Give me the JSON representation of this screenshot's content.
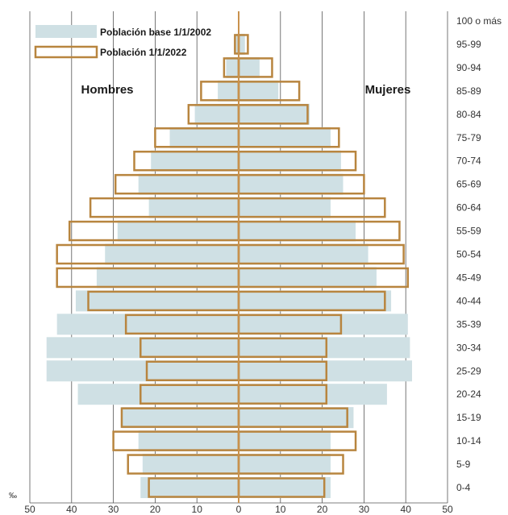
{
  "chart_data": {
    "type": "bar",
    "subtype": "population-pyramid",
    "unit_label": "‰",
    "male_label": "Hombres",
    "female_label": "Mujeres",
    "age_groups": [
      "0-4",
      "5-9",
      "10-14",
      "15-19",
      "20-24",
      "25-29",
      "30-34",
      "35-39",
      "40-44",
      "45-49",
      "50-54",
      "55-59",
      "60-64",
      "65-69",
      "70-74",
      "75-79",
      "80-84",
      "85-89",
      "90-94",
      "95-99",
      "100 o más"
    ],
    "x_ticks": [
      50,
      40,
      30,
      20,
      10,
      0,
      10,
      20,
      30,
      40,
      50
    ],
    "xlim": [
      -50,
      50
    ],
    "grid": true,
    "legend_position": "top-left",
    "series": [
      {
        "name": "Población base 1/1/2002",
        "style": "filled",
        "color": "#cfe0e4",
        "male": [
          23.5,
          23,
          24,
          28,
          38.5,
          46,
          46,
          43.5,
          39,
          34,
          32,
          29,
          21.5,
          24,
          21,
          16.5,
          10.5,
          5,
          3,
          0.8,
          0
        ],
        "female": [
          22,
          22,
          22,
          27.5,
          35.5,
          41.5,
          41,
          40.5,
          36.5,
          33,
          31,
          28,
          22,
          25,
          24.5,
          22,
          17,
          9.5,
          5,
          1.5,
          0
        ]
      },
      {
        "name": "Población 1/1/2022",
        "style": "outline",
        "color": "#b8853f",
        "male": [
          21.5,
          26.5,
          30,
          28,
          23.5,
          22,
          23.5,
          27,
          36,
          43.5,
          43.5,
          40.5,
          35.5,
          29.5,
          25,
          20,
          12,
          9,
          3.5,
          0.9,
          0
        ],
        "female": [
          20.5,
          25,
          28,
          26,
          21,
          21,
          21,
          24.5,
          35,
          40.5,
          39.5,
          38.5,
          35,
          30,
          28,
          24,
          16.5,
          14.5,
          8,
          2.2,
          0
        ]
      }
    ]
  }
}
